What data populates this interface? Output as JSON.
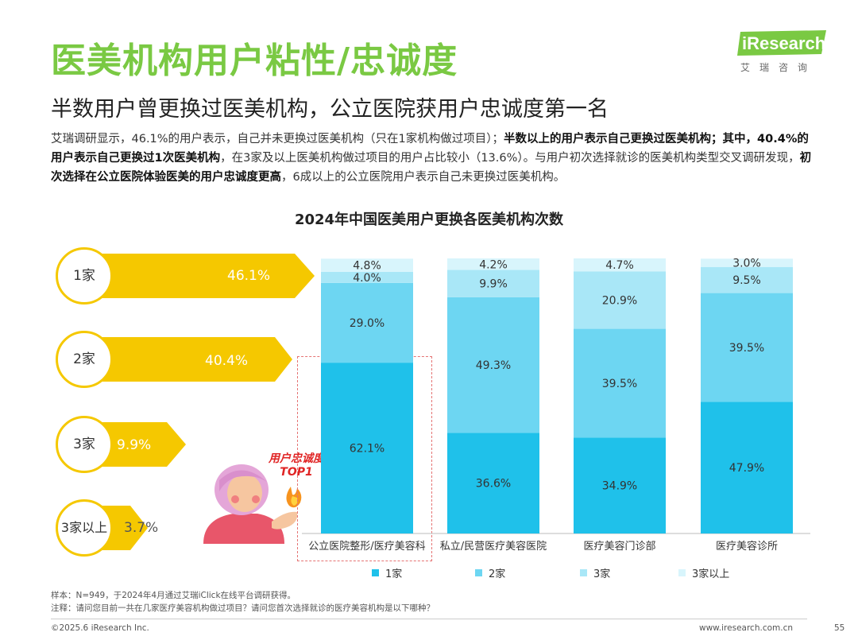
{
  "header": {
    "title": "医美机构用户粘性/忠诚度",
    "subtitle": "半数用户曾更换过医美机构，公立医院获用户忠诚度第一名",
    "logo_text": "iResearch",
    "logo_sub": "艾瑞咨询"
  },
  "body": {
    "p1": "艾瑞调研显示，46.1%的用户表示，自己并未更换过医美机构（只在1家机构做过项目）；",
    "p1_bold": "半数以上的用户表示自己更换过医美机构；其中，40.4%的用户表示自己更换过1次医美机构",
    "p2": "，在3家及以上医美机构做过项目的用户占比较小（13.6%）。与用户初次选择就诊的医美机构类型交叉调研发现，",
    "p2_bold": "初次选择在公立医院体验医美的用户忠诚度更高",
    "p3": "，6成以上的公立医院用户表示自己未更换过医美机构。"
  },
  "left_panel": {
    "items": [
      {
        "label": "1家",
        "value": "46.1%"
      },
      {
        "label": "2家",
        "value": "40.4%"
      },
      {
        "label": "3家",
        "value": "9.9%"
      },
      {
        "label": "3家以上",
        "value": "3.7%"
      }
    ]
  },
  "callout": {
    "line1": "用户忠诚度",
    "line2": "TOP1"
  },
  "colors": {
    "accent_green": "#7AC943",
    "yellow": "#F5C800",
    "series1": "#1FC1EA",
    "series2": "#6DD6F2",
    "series3": "#A9E7F7",
    "series4": "#D8F5FC"
  },
  "chart_data": {
    "type": "bar",
    "stacked": true,
    "title": "2024年中国医美用户更换各医美机构次数",
    "categories": [
      "公立医院整形/医疗美容科",
      "私立/民营医疗美容医院",
      "医疗美容门诊部",
      "医疗美容诊所"
    ],
    "series": [
      {
        "name": "1家",
        "values": [
          62.1,
          36.6,
          34.9,
          47.9
        ]
      },
      {
        "name": "2家",
        "values": [
          29.0,
          49.3,
          39.5,
          39.5
        ]
      },
      {
        "name": "3家",
        "values": [
          4.0,
          9.9,
          20.9,
          9.5
        ]
      },
      {
        "name": "3家以上",
        "values": [
          4.8,
          4.2,
          4.7,
          3.0
        ]
      }
    ],
    "ylim": [
      0,
      100
    ],
    "legend": "bottom"
  },
  "notes": {
    "sample": "样本：N=949，于2024年4月通过艾瑞iClick在线平台调研获得。",
    "note": "注释：请问您目前一共在几家医疗美容机构做过项目？请问您首次选择就诊的医疗美容机构是以下哪种？"
  },
  "footer": {
    "copyright": "©2025.6 iResearch Inc.",
    "website": "www.iresearch.com.cn",
    "page": "55"
  }
}
